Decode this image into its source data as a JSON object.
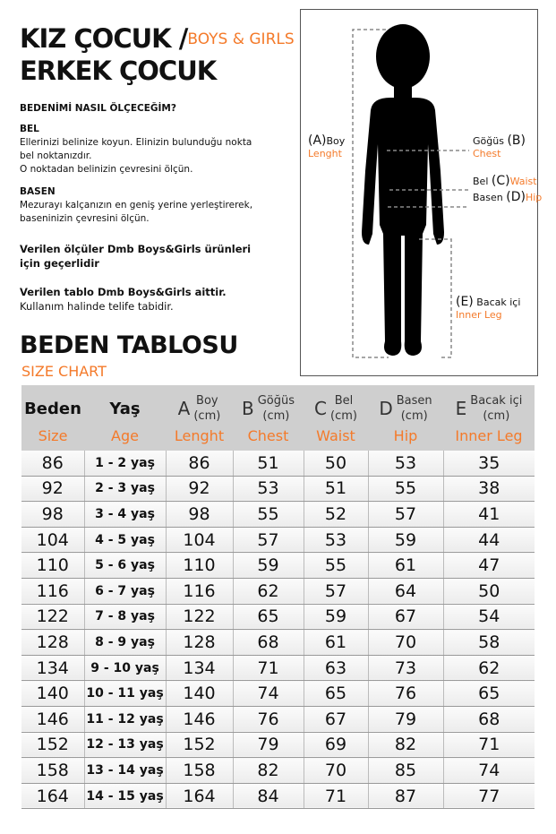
{
  "title": {
    "line1": "KIZ ÇOCUK /",
    "tag": "BOYS & GIRLS",
    "line2": "ERKEK ÇOCUK"
  },
  "how_to": "BEDENİMİ NASIL ÖLÇECEĞİM?",
  "bel": {
    "heading": "BEL",
    "lines": [
      "Ellerinizi belinize koyun. Elinizin bulunduğu nokta",
      "bel noktanızdır.",
      "O noktadan belinizin çevresini ölçün."
    ]
  },
  "basen": {
    "heading": "BASEN",
    "lines": [
      "Mezurayı kalçanızın en geniş yerine yerleştirerek,",
      "baseninizin çevresini ölçün."
    ]
  },
  "notes": {
    "n1a": "Verilen ölçüler Dmb Boys&Girls ürünleri",
    "n1b": "için geçerlidir",
    "n2a": "Verilen tablo Dmb Boys&Girls aittir.",
    "n2b": "Kullanım halinde telife tabidir."
  },
  "chart_title": "BEDEN TABLOSU",
  "chart_subtitle": "SIZE CHART",
  "figure": {
    "a": {
      "letter": "(A)",
      "tr": "Boy",
      "en": "Lenght"
    },
    "b": {
      "letter": "(B)",
      "tr": "Göğüs",
      "en": "Chest"
    },
    "c": {
      "letter": "(C)",
      "tr": "Bel",
      "en": "Waist"
    },
    "d": {
      "letter": "(D)",
      "tr": "Basen",
      "en": "Hip"
    },
    "e": {
      "letter": "(E)",
      "tr": "Bacak içi",
      "en": "Inner Leg"
    }
  },
  "table": {
    "headers": [
      {
        "letter": "",
        "tr": "Beden",
        "unit": "",
        "en": "Size"
      },
      {
        "letter": "",
        "tr": "Yaş",
        "unit": "",
        "en": "Age"
      },
      {
        "letter": "A",
        "tr": "Boy",
        "unit": "(cm)",
        "en": "Lenght"
      },
      {
        "letter": "B",
        "tr": "Göğüs",
        "unit": "(cm)",
        "en": "Chest"
      },
      {
        "letter": "C",
        "tr": "Bel",
        "unit": "(cm)",
        "en": "Waist"
      },
      {
        "letter": "D",
        "tr": "Basen",
        "unit": "(cm)",
        "en": "Hip"
      },
      {
        "letter": "E",
        "tr": "Bacak içi",
        "unit": "(cm)",
        "en": "Inner Leg"
      }
    ],
    "rows": [
      [
        "86",
        "1 - 2 yaş",
        "86",
        "51",
        "50",
        "53",
        "35"
      ],
      [
        "92",
        "2 - 3 yaş",
        "92",
        "53",
        "51",
        "55",
        "38"
      ],
      [
        "98",
        "3 - 4 yaş",
        "98",
        "55",
        "52",
        "57",
        "41"
      ],
      [
        "104",
        "4 - 5 yaş",
        "104",
        "57",
        "53",
        "59",
        "44"
      ],
      [
        "110",
        "5 - 6 yaş",
        "110",
        "59",
        "55",
        "61",
        "47"
      ],
      [
        "116",
        "6 - 7 yaş",
        "116",
        "62",
        "57",
        "64",
        "50"
      ],
      [
        "122",
        "7 - 8 yaş",
        "122",
        "65",
        "59",
        "67",
        "54"
      ],
      [
        "128",
        "8 - 9 yaş",
        "128",
        "68",
        "61",
        "70",
        "58"
      ],
      [
        "134",
        "9 - 10 yaş",
        "134",
        "71",
        "63",
        "73",
        "62"
      ],
      [
        "140",
        "10 - 11 yaş",
        "140",
        "74",
        "65",
        "76",
        "65"
      ],
      [
        "146",
        "11 - 12 yaş",
        "146",
        "76",
        "67",
        "79",
        "68"
      ],
      [
        "152",
        "12 - 13 yaş",
        "152",
        "79",
        "69",
        "82",
        "71"
      ],
      [
        "158",
        "13 - 14 yaş",
        "158",
        "82",
        "70",
        "85",
        "74"
      ],
      [
        "164",
        "14 - 15 yaş",
        "164",
        "84",
        "71",
        "87",
        "77"
      ]
    ]
  },
  "colors": {
    "accent": "#f47a2a",
    "header_bg": "#cfcfcf"
  }
}
